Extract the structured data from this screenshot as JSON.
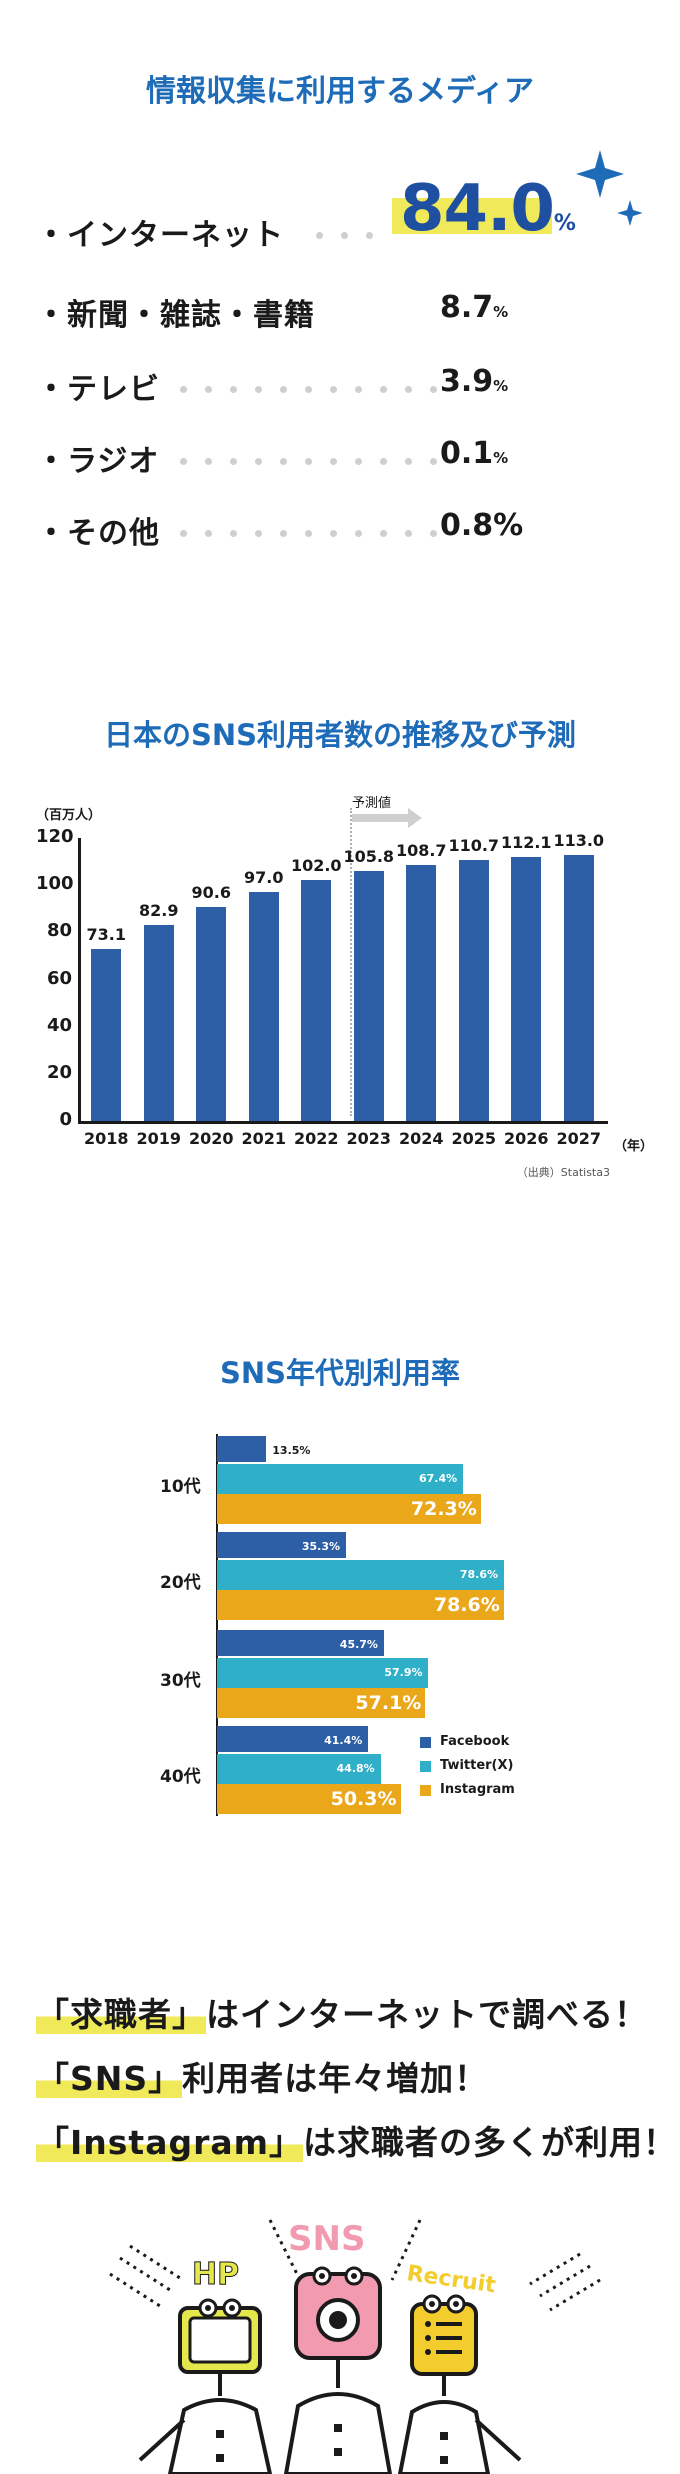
{
  "media": {
    "title": "情報収集に利用するメディア",
    "items": [
      {
        "label": "・インターネット",
        "value": "84.0",
        "unit": "%"
      },
      {
        "label": "・新聞・雑誌・書籍",
        "value": "8.7",
        "unit": "%"
      },
      {
        "label": "・テレビ",
        "value": "3.9",
        "unit": "%"
      },
      {
        "label": "・ラジオ",
        "value": "0.1",
        "unit": "%"
      },
      {
        "label": "・その他",
        "value": "0.8%",
        "unit": ""
      }
    ],
    "colors": {
      "highlight": "#f0ea5a",
      "big_value": "#1e4fa0",
      "sparkle": "#1e6bb8"
    }
  },
  "chart_data": [
    {
      "type": "bar",
      "title": "日本のSNS利用者数の推移及び予測",
      "ylabel": "（百万人）",
      "xlabel_unit": "（年）",
      "categories": [
        "2018",
        "2019",
        "2020",
        "2021",
        "2022",
        "2023",
        "2024",
        "2025",
        "2026",
        "2027"
      ],
      "values": [
        73.1,
        82.9,
        90.6,
        97.0,
        102.0,
        105.8,
        108.7,
        110.7,
        112.1,
        113.0
      ],
      "value_labels": [
        "73.1",
        "82.9",
        "90.6",
        "97.0",
        "102.0",
        "105.8",
        "108.7",
        "110.7",
        "112.1",
        "113.0"
      ],
      "yticks": [
        "120",
        "100",
        "80",
        "60",
        "40",
        "20",
        "0"
      ],
      "ylim": [
        0,
        120
      ],
      "forecast_from": "2023",
      "forecast_label": "予測値",
      "source": "（出典）Statista3",
      "color": "#2d5fa6"
    },
    {
      "type": "bar",
      "orientation": "horizontal",
      "title": "SNS年代別利用率",
      "categories": [
        "10代",
        "20代",
        "30代",
        "40代"
      ],
      "series": [
        {
          "name": "Facebook",
          "color": "#2d5fa6",
          "values": [
            13.5,
            35.3,
            45.7,
            41.4
          ],
          "labels": [
            "13.5%",
            "35.3%",
            "45.7%",
            "41.4%"
          ]
        },
        {
          "name": "Twitter(X)",
          "color": "#2fb0c8",
          "values": [
            67.4,
            78.6,
            57.9,
            44.8
          ],
          "labels": [
            "67.4%",
            "78.6%",
            "57.9%",
            "44.8%"
          ]
        },
        {
          "name": "Instagram",
          "color": "#eaa71a",
          "values": [
            72.3,
            78.6,
            57.1,
            50.3
          ],
          "labels": [
            "72.3%",
            "78.6%",
            "57.1%",
            "50.3%"
          ]
        }
      ],
      "legend": "bottom-right"
    }
  ],
  "taglines": [
    {
      "pre": "「求職者」",
      "post": "はインターネットで調べる！"
    },
    {
      "pre": "「SNS」",
      "post": "利用者は年々増加！"
    },
    {
      "pre": "「Instagram」",
      "post": "は求職者の多くが利用！"
    }
  ],
  "illustration": {
    "labels": [
      "HP",
      "SNS",
      "Recruit"
    ],
    "colors": {
      "hp": "#e5e84a",
      "sns": "#f29bb0",
      "recruit": "#f3cc2d"
    }
  }
}
